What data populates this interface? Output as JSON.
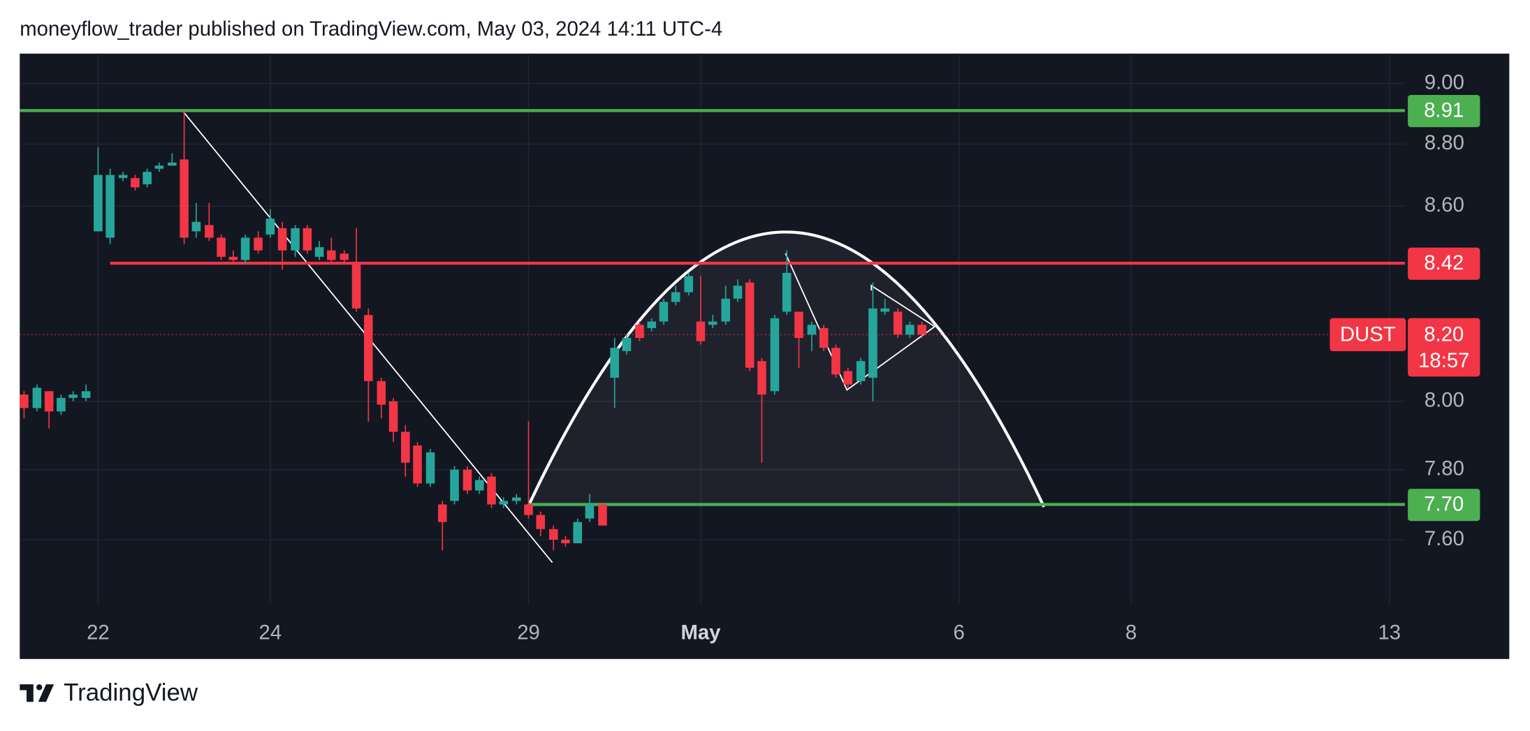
{
  "header": "moneyflow_trader published on TradingView.com, May 03, 2024 14:11 UTC-4",
  "footer": {
    "brand": "TradingView"
  },
  "chart_data": {
    "type": "candlestick",
    "log_scale": true,
    "grid": true,
    "up_color": "#26a69a",
    "down_color": "#f23645",
    "xlim": [
      -0.91,
      15.18
    ],
    "ylim": [
      7.42,
      9.1
    ],
    "xticks": [
      {
        "value": 0,
        "label": "22"
      },
      {
        "value": 2,
        "label": "24"
      },
      {
        "value": 5,
        "label": "29"
      },
      {
        "value": 7,
        "label": "May",
        "bold": true
      },
      {
        "value": 10,
        "label": "6"
      },
      {
        "value": 12,
        "label": "8"
      },
      {
        "value": 15,
        "label": "13"
      }
    ],
    "yticks": [
      {
        "value": 7.6,
        "label": "7.60"
      },
      {
        "value": 7.8,
        "label": "7.80"
      },
      {
        "value": 8,
        "label": "8.00"
      },
      {
        "value": 8.6,
        "label": "8.60"
      },
      {
        "value": 8.8,
        "label": "8.80"
      },
      {
        "value": 9,
        "label": "9.00"
      }
    ],
    "x": [
      -0.86,
      -0.71,
      -0.57,
      -0.43,
      -0.29,
      -0.14,
      0,
      0.14,
      0.29,
      0.43,
      0.57,
      0.71,
      0.86,
      1,
      1.14,
      1.29,
      1.43,
      1.57,
      1.71,
      1.86,
      2,
      2.14,
      2.29,
      2.43,
      2.57,
      2.71,
      2.86,
      3,
      3.14,
      3.29,
      3.43,
      3.57,
      3.71,
      3.86,
      4,
      4.14,
      4.29,
      4.43,
      4.57,
      4.71,
      4.86,
      5,
      5.14,
      5.29,
      5.43,
      5.57,
      5.71,
      5.86,
      6,
      6.14,
      6.29,
      6.43,
      6.57,
      6.71,
      6.86,
      7,
      7.14,
      7.29,
      7.43,
      7.57,
      7.71,
      7.86,
      8,
      8.14,
      8.29,
      8.43,
      8.57,
      8.71,
      8.86,
      9,
      9.14,
      9.29,
      9.43,
      9.57
    ],
    "open": [
      8.02,
      7.98,
      8.03,
      7.97,
      8.01,
      8.01,
      8.52,
      8.5,
      8.69,
      8.69,
      8.67,
      8.72,
      8.73,
      8.75,
      8.52,
      8.54,
      8.5,
      8.44,
      8.43,
      8.5,
      8.51,
      8.53,
      8.46,
      8.53,
      8.44,
      8.46,
      8.45,
      8.42,
      8.26,
      8.06,
      8.0,
      7.91,
      7.87,
      7.76,
      7.7,
      7.71,
      7.8,
      7.74,
      7.78,
      7.7,
      7.71,
      7.7,
      7.67,
      7.63,
      7.6,
      7.59,
      7.66,
      7.7,
      8.07,
      8.15,
      8.23,
      8.22,
      8.24,
      8.3,
      8.33,
      8.24,
      8.23,
      8.24,
      8.31,
      8.36,
      8.12,
      8.03,
      8.27,
      8.27,
      8.2,
      8.22,
      8.16,
      8.09,
      8.06,
      8.07,
      8.27,
      8.27,
      8.2,
      8.23
    ],
    "high": [
      8.03,
      8.05,
      8.03,
      8.02,
      8.03,
      8.05,
      8.79,
      8.72,
      8.71,
      8.7,
      8.72,
      8.74,
      8.77,
      8.91,
      8.61,
      8.61,
      8.51,
      8.46,
      8.51,
      8.52,
      8.59,
      8.55,
      8.54,
      8.54,
      8.49,
      8.5,
      8.46,
      8.53,
      8.28,
      8.07,
      8.01,
      7.93,
      7.88,
      7.86,
      7.71,
      7.81,
      7.81,
      7.78,
      7.79,
      7.72,
      7.73,
      7.94,
      7.68,
      7.64,
      7.61,
      7.66,
      7.73,
      7.7,
      8.19,
      8.2,
      8.24,
      8.25,
      8.31,
      8.35,
      8.39,
      8.38,
      8.26,
      8.35,
      8.37,
      8.37,
      8.13,
      8.26,
      8.46,
      8.27,
      8.24,
      8.23,
      8.17,
      8.1,
      8.13,
      8.36,
      8.31,
      8.28,
      8.24,
      8.24
    ],
    "low": [
      7.95,
      7.97,
      7.92,
      7.96,
      8.0,
      8.0,
      8.52,
      8.48,
      8.68,
      8.65,
      8.66,
      8.71,
      8.73,
      8.48,
      8.5,
      8.49,
      8.43,
      8.42,
      8.42,
      8.45,
      8.5,
      8.4,
      8.44,
      8.45,
      8.43,
      8.42,
      8.42,
      8.27,
      7.94,
      7.95,
      7.88,
      7.78,
      7.75,
      7.75,
      7.57,
      7.7,
      7.73,
      7.73,
      7.69,
      7.69,
      7.7,
      7.66,
      7.61,
      7.57,
      7.58,
      7.59,
      7.65,
      7.64,
      7.98,
      8.14,
      8.18,
      8.21,
      8.23,
      8.29,
      8.32,
      8.17,
      8.22,
      8.23,
      8.3,
      8.09,
      7.82,
      8.02,
      8.26,
      8.1,
      8.15,
      8.15,
      8.07,
      8.04,
      8.05,
      8.0,
      8.26,
      8.19,
      8.19,
      8.19
    ],
    "close": [
      7.98,
      8.04,
      7.97,
      8.01,
      8.02,
      8.03,
      8.7,
      8.7,
      8.7,
      8.66,
      8.71,
      8.73,
      8.74,
      8.5,
      8.55,
      8.5,
      8.44,
      8.43,
      8.5,
      8.46,
      8.56,
      8.46,
      8.53,
      8.46,
      8.47,
      8.43,
      8.43,
      8.28,
      8.06,
      7.99,
      7.91,
      7.82,
      7.76,
      7.85,
      7.65,
      7.8,
      7.74,
      7.77,
      7.7,
      7.71,
      7.72,
      7.67,
      7.63,
      7.6,
      7.59,
      7.65,
      7.7,
      7.64,
      8.16,
      8.19,
      8.19,
      8.24,
      8.3,
      8.33,
      8.38,
      8.18,
      8.24,
      8.31,
      8.35,
      8.1,
      8.02,
      8.25,
      8.39,
      8.19,
      8.23,
      8.16,
      8.08,
      8.05,
      8.12,
      8.28,
      8.28,
      8.2,
      8.23,
      8.2
    ],
    "hlines": [
      {
        "value": 8.91,
        "label": "8.91",
        "color": "#4caf50"
      },
      {
        "value": 8.42,
        "label": "8.42",
        "color": "#f23645",
        "x_start": 0.14
      },
      {
        "value": 7.7,
        "label": "7.70",
        "color": "#4caf50",
        "x_start": 5
      }
    ],
    "last_price": {
      "symbol": "DUST",
      "value": 8.2,
      "label": "8.20",
      "countdown": "18:57",
      "color": "#f23645"
    }
  }
}
